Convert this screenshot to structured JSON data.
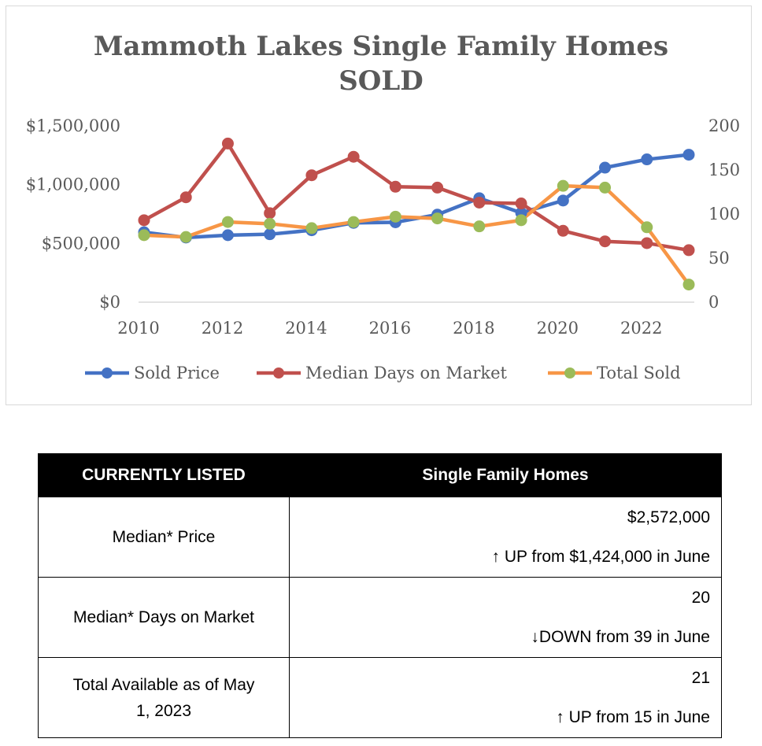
{
  "chart_data": {
    "type": "line",
    "title": "Mammoth Lakes Single Family Homes",
    "title_line2": "SOLD",
    "x": [
      2010,
      2011,
      2012,
      2013,
      2014,
      2015,
      2016,
      2017,
      2018,
      2019,
      2020,
      2021,
      2022,
      2023
    ],
    "x_ticks": [
      "2010",
      "2012",
      "2014",
      "2016",
      "2018",
      "2020",
      "2022"
    ],
    "y_left_ticks": [
      "$0",
      "$500,000",
      "$1,000,000",
      "$1,500,000"
    ],
    "y_right_ticks": [
      "0",
      "50",
      "100",
      "150",
      "200"
    ],
    "y_left_lim": [
      0,
      1500000
    ],
    "y_right_lim": [
      0,
      200
    ],
    "legend_position": "bottom",
    "grid": false,
    "series": [
      {
        "name": "Sold Price",
        "axis": "left",
        "color": "#4472C4",
        "marker_color": "#4472C4",
        "values": [
          595000,
          550000,
          570000,
          578000,
          612000,
          675000,
          680000,
          745000,
          885000,
          760000,
          865000,
          1145000,
          1215000,
          1255000
        ]
      },
      {
        "name": "Median Days on Market",
        "axis": "right",
        "color": "#C0504D",
        "marker_color": "#C0504D",
        "values": [
          93,
          119,
          180,
          101,
          144,
          165,
          131,
          130,
          113,
          112,
          81,
          69,
          67,
          59
        ]
      },
      {
        "name": "Total Sold",
        "axis": "right",
        "color": "#F79646",
        "marker_color": "#9BBB59",
        "values": [
          76,
          74,
          91,
          89,
          84,
          91,
          97,
          95,
          86,
          93,
          132,
          130,
          85,
          20
        ]
      }
    ]
  },
  "table": {
    "header_col1": "CURRENTLY LISTED",
    "header_col2": "Single Family Homes",
    "rows": [
      {
        "label": "Median* Price",
        "value": "$2,572,000",
        "change": "↑ UP from $1,424,000 in June"
      },
      {
        "label": "Median* Days on Market",
        "value": "20",
        "change": "↓DOWN  from 39 in June"
      },
      {
        "label": "Total Available as of May 1, 2023",
        "value": "21",
        "change": "↑ UP  from 15 in June"
      }
    ]
  }
}
